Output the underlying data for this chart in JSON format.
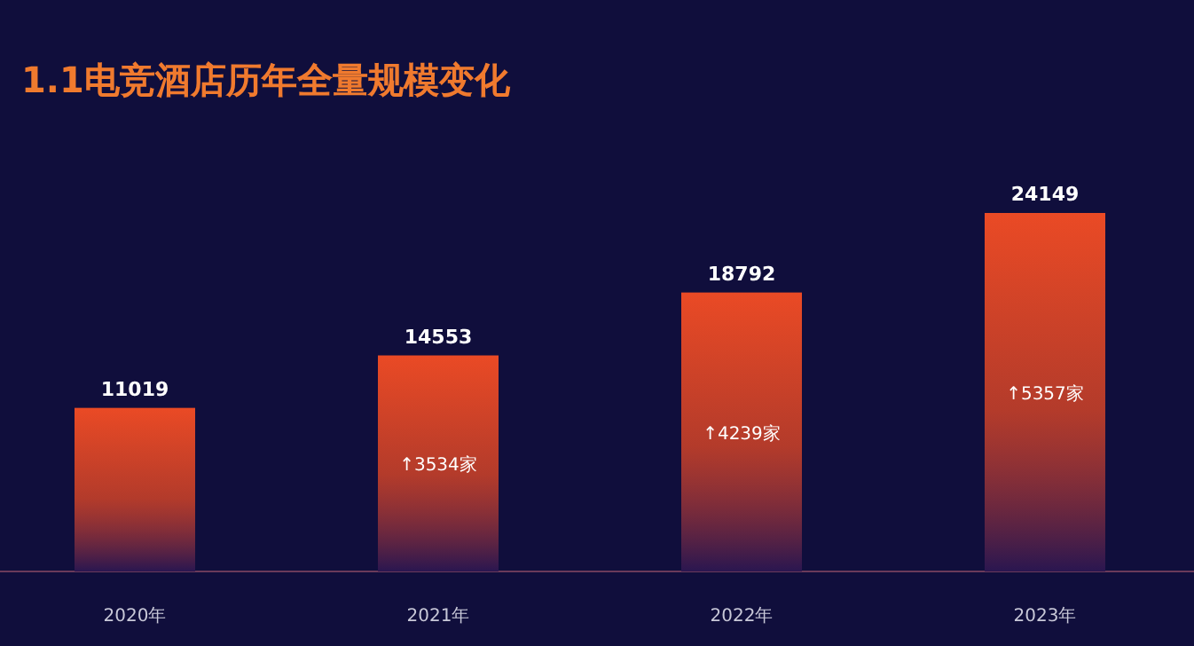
{
  "chart_data": {
    "type": "bar",
    "title": "1.1电竞酒店历年全量规模变化",
    "categories": [
      "2020年",
      "2021年",
      "2022年",
      "2023年"
    ],
    "values": [
      11019,
      14553,
      18792,
      24149
    ],
    "color": "#ea4a25",
    "data_labels": true,
    "annotations": [
      "↑3534家",
      "↑4239家",
      "↑5357家"
    ]
  }
}
